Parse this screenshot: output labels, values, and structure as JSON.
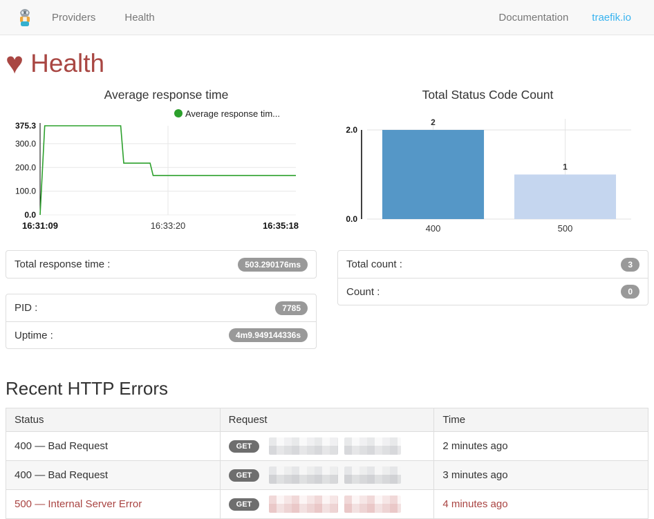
{
  "navbar": {
    "links": [
      {
        "label": "Providers"
      },
      {
        "label": "Health"
      }
    ],
    "right_links": [
      {
        "label": "Documentation"
      },
      {
        "label": "traefik.io"
      }
    ]
  },
  "page": {
    "title": "Health",
    "heart_icon": "♥"
  },
  "colors": {
    "title_red": "#a94743",
    "error_red": "#a94442",
    "line_green": "#2ca02c",
    "bar_400": "#5597c7",
    "bar_500": "#c5d6ef",
    "link_blue": "#37b3f0",
    "badge_gray": "#999999"
  },
  "chart_data": [
    {
      "type": "line",
      "title": "Average response time",
      "legend": [
        {
          "label": "Average response tim...",
          "color": "#2ca02c"
        }
      ],
      "color": "#2ca02c",
      "x_ticks": [
        "16:31:09",
        "16:33:20",
        "16:35:18"
      ],
      "y_ticks": [
        0,
        100,
        200,
        300,
        375.3
      ],
      "ylim": [
        0,
        375.3
      ],
      "xlabel": "",
      "ylabel": "",
      "points": [
        [
          0,
          0
        ],
        [
          0.018,
          375.3
        ],
        [
          0.315,
          375.3
        ],
        [
          0.327,
          218
        ],
        [
          0.43,
          218
        ],
        [
          0.442,
          166
        ],
        [
          1,
          166
        ]
      ]
    },
    {
      "type": "bar",
      "title": "Total Status Code Count",
      "categories": [
        "400",
        "500"
      ],
      "values": [
        2,
        1
      ],
      "colors": [
        "#5597c7",
        "#c5d6ef"
      ],
      "y_ticks": [
        0,
        2
      ],
      "ylim": [
        0,
        2
      ],
      "xlabel": "",
      "ylabel": ""
    }
  ],
  "stats": {
    "total_response_time": {
      "label": "Total response time :",
      "value": "503.290176ms"
    },
    "pid": {
      "label": "PID :",
      "value": "7785"
    },
    "uptime": {
      "label": "Uptime :",
      "value": "4m9.949144336s"
    },
    "total_count": {
      "label": "Total count :",
      "value": "3"
    },
    "count": {
      "label": "Count :",
      "value": "0"
    }
  },
  "errors_section": {
    "title": "Recent HTTP Errors",
    "headers": [
      "Status",
      "Request",
      "Time"
    ],
    "rows": [
      {
        "status": "400 — Bad Request",
        "method": "GET",
        "time": "2 minutes ago",
        "is_error": false
      },
      {
        "status": "400 — Bad Request",
        "method": "GET",
        "time": "3 minutes ago",
        "is_error": false
      },
      {
        "status": "500 — Internal Server Error",
        "method": "GET",
        "time": "4 minutes ago",
        "is_error": true
      }
    ]
  }
}
